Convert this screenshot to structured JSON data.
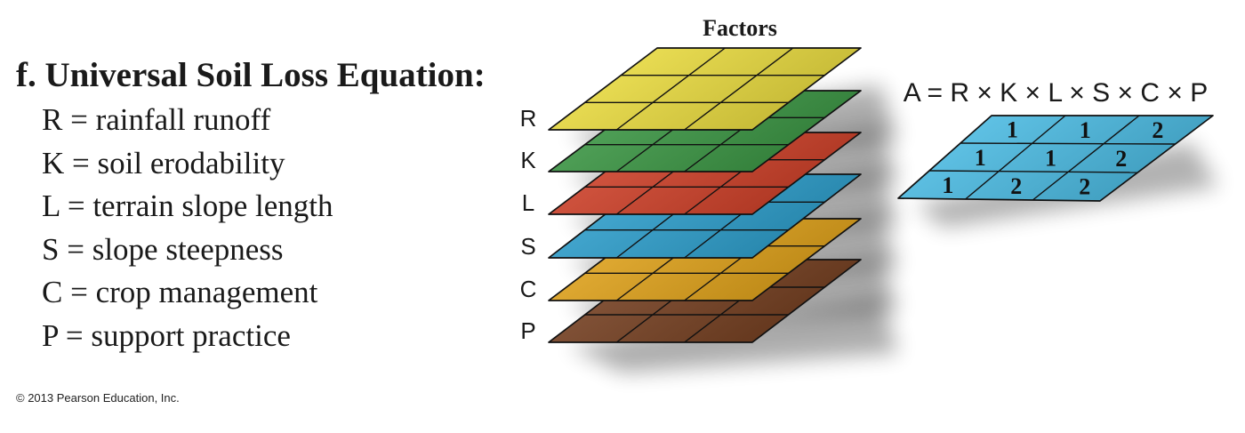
{
  "heading": "f. Universal Soil Loss Equation:",
  "definitions": [
    "R = rainfall runoff",
    "K = soil erodability",
    "L = terrain slope length",
    "S = slope steepness",
    "C = crop management",
    "P = support practice"
  ],
  "diagram": {
    "title": "Factors",
    "layers": [
      {
        "label": "R",
        "color": "#F5E642"
      },
      {
        "label": "K",
        "color": "#3E9E47"
      },
      {
        "label": "L",
        "color": "#D8432A"
      },
      {
        "label": "S",
        "color": "#2FA6D6"
      },
      {
        "label": "C",
        "color": "#EBAA1C"
      },
      {
        "label": "P",
        "color": "#7A4222"
      }
    ],
    "equation": "A = R × K × L × S × C × P",
    "result": {
      "color": "#4FC4EE",
      "rows": [
        [
          "1",
          "1",
          "2"
        ],
        [
          "1",
          "1",
          "2"
        ],
        [
          "1",
          "2",
          "2"
        ]
      ]
    }
  },
  "copyright": "© 2013 Pearson Education, Inc."
}
